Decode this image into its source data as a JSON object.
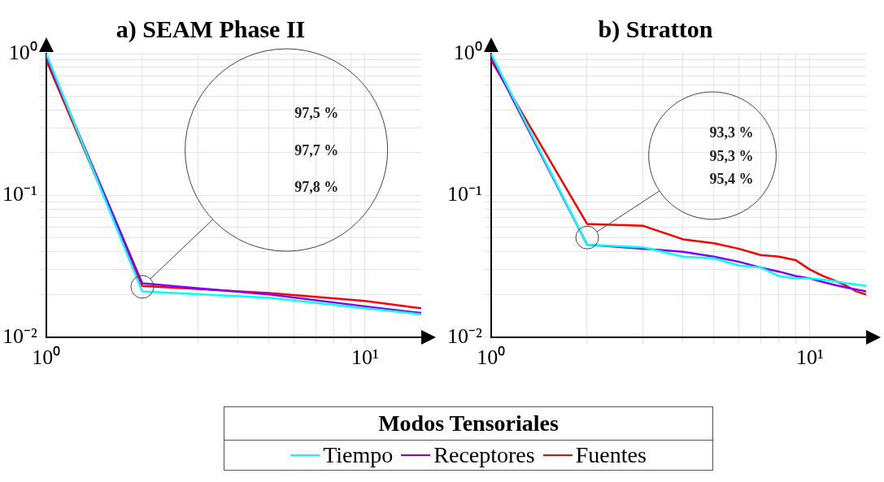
{
  "chart_data": [
    {
      "type": "line",
      "title": "a) SEAM Phase II",
      "x": [
        1,
        2,
        5,
        10,
        15
      ],
      "series": [
        {
          "name": "Tiempo",
          "color": "#00ffff",
          "values": [
            1,
            0.021,
            0.019,
            0.016,
            0.0145
          ]
        },
        {
          "name": "Receptores",
          "color": "#8000ff",
          "values": [
            0.95,
            0.024,
            0.02,
            0.0165,
            0.0148
          ]
        },
        {
          "name": "Fuentes",
          "color": "#ff0000",
          "values": [
            0.9,
            0.023,
            0.0205,
            0.018,
            0.016
          ]
        }
      ],
      "log": "xy",
      "xlim": [
        1,
        15
      ],
      "ylim": [
        0.01,
        1
      ],
      "xticks": [
        {
          "value": 1,
          "label": "10⁰"
        },
        {
          "value": 2,
          "label": null
        },
        {
          "value": 3,
          "label": null
        },
        {
          "value": 4,
          "label": null
        },
        {
          "value": 5,
          "label": null
        },
        {
          "value": 6,
          "label": null
        },
        {
          "value": 7,
          "label": null
        },
        {
          "value": 8,
          "label": null
        },
        {
          "value": 9,
          "label": null
        },
        {
          "value": 10,
          "label": "10¹"
        }
      ],
      "yticks": [
        {
          "value": 0.01,
          "label": "10⁻²"
        },
        {
          "value": 0.02,
          "label": null
        },
        {
          "value": 0.03,
          "label": null
        },
        {
          "value": 0.04,
          "label": null
        },
        {
          "value": 0.05,
          "label": null
        },
        {
          "value": 0.06,
          "label": null
        },
        {
          "value": 0.07,
          "label": null
        },
        {
          "value": 0.08,
          "label": null
        },
        {
          "value": 0.09,
          "label": null
        },
        {
          "value": 0.1,
          "label": "10⁻¹"
        },
        {
          "value": 0.2,
          "label": null
        },
        {
          "value": 0.3,
          "label": null
        },
        {
          "value": 0.4,
          "label": null
        },
        {
          "value": 0.5,
          "label": null
        },
        {
          "value": 0.6,
          "label": null
        },
        {
          "value": 0.7,
          "label": null
        },
        {
          "value": 0.8,
          "label": null
        },
        {
          "value": 0.9,
          "label": null
        },
        {
          "value": 1,
          "label": "10⁰"
        }
      ],
      "grid": true,
      "legend": "bottom",
      "legend_title": "Modos Tensoriales",
      "marker": "none",
      "line_style": "solid",
      "annotations": [
        "97,5 %",
        "97,7 %",
        "97,8 %"
      ]
    },
    {
      "type": "line",
      "title": "b) Stratton",
      "x": [
        1,
        2,
        3,
        4,
        5,
        6,
        7,
        8,
        9,
        10,
        11,
        12,
        13,
        14,
        15
      ],
      "series": [
        {
          "name": "Tiempo",
          "color": "#00ffff",
          "values": [
            1,
            0.045,
            0.043,
            0.037,
            0.036,
            0.032,
            0.031,
            0.027,
            0.026,
            0.026,
            0.0255,
            0.0248,
            0.024,
            0.0235,
            0.023
          ]
        },
        {
          "name": "Receptores",
          "color": "#8000ff",
          "values": [
            0.95,
            0.045,
            0.042,
            0.04,
            0.037,
            0.034,
            0.031,
            0.029,
            0.027,
            0.026,
            0.0245,
            0.0233,
            0.0224,
            0.0217,
            0.021
          ]
        },
        {
          "name": "Fuentes",
          "color": "#ff0000",
          "values": [
            0.9,
            0.063,
            0.061,
            0.049,
            0.046,
            0.042,
            0.038,
            0.037,
            0.035,
            0.03,
            0.027,
            0.025,
            0.023,
            0.021,
            0.02
          ]
        }
      ],
      "log": "xy",
      "xlim": [
        1,
        15
      ],
      "ylim": [
        0.01,
        1
      ],
      "xticks": [
        {
          "value": 1,
          "label": "10⁰"
        },
        {
          "value": 2,
          "label": null
        },
        {
          "value": 3,
          "label": null
        },
        {
          "value": 4,
          "label": null
        },
        {
          "value": 5,
          "label": null
        },
        {
          "value": 6,
          "label": null
        },
        {
          "value": 7,
          "label": null
        },
        {
          "value": 8,
          "label": null
        },
        {
          "value": 9,
          "label": null
        },
        {
          "value": 10,
          "label": "10¹"
        }
      ],
      "yticks": [
        {
          "value": 0.01,
          "label": "10⁻²"
        },
        {
          "value": 0.02,
          "label": null
        },
        {
          "value": 0.03,
          "label": null
        },
        {
          "value": 0.04,
          "label": null
        },
        {
          "value": 0.05,
          "label": null
        },
        {
          "value": 0.06,
          "label": null
        },
        {
          "value": 0.07,
          "label": null
        },
        {
          "value": 0.08,
          "label": null
        },
        {
          "value": 0.09,
          "label": null
        },
        {
          "value": 0.1,
          "label": "10⁻¹"
        },
        {
          "value": 0.2,
          "label": null
        },
        {
          "value": 0.3,
          "label": null
        },
        {
          "value": 0.4,
          "label": null
        },
        {
          "value": 0.5,
          "label": null
        },
        {
          "value": 0.6,
          "label": null
        },
        {
          "value": 0.7,
          "label": null
        },
        {
          "value": 0.8,
          "label": null
        },
        {
          "value": 0.9,
          "label": null
        },
        {
          "value": 1,
          "label": "10⁰"
        }
      ],
      "grid": true,
      "legend": "bottom",
      "marker": "none",
      "line_style": "solid",
      "annotations": [
        "93,3 %",
        "95,3 %",
        "95,4 %"
      ]
    }
  ]
}
